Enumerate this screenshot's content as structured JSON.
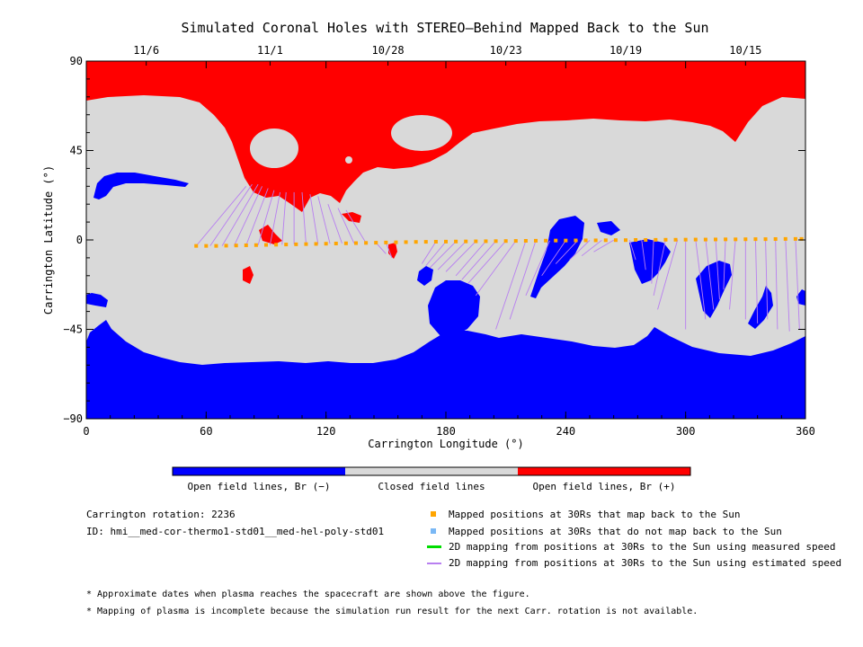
{
  "chart_data": {
    "type": "map",
    "title": "Simulated Coronal Holes with STEREO–Behind Mapped Back to the Sun",
    "xlabel": "Carrington Longitude (°)",
    "ylabel": "Carrington Latitude (°)",
    "xlim": [
      0,
      360
    ],
    "ylim": [
      -90,
      90
    ],
    "x_ticks": [
      "0",
      "60",
      "120",
      "180",
      "240",
      "300",
      "360"
    ],
    "y_ticks": [
      "90",
      "45",
      "0",
      "−45",
      "−90"
    ],
    "top_axis_dates": [
      {
        "label": "11/6",
        "lon": 30
      },
      {
        "label": "11/1",
        "lon": 92
      },
      {
        "label": "10/28",
        "lon": 151
      },
      {
        "label": "10/23",
        "lon": 210
      },
      {
        "label": "10/19",
        "lon": 270
      },
      {
        "label": "10/15",
        "lon": 330
      }
    ],
    "colorbar": [
      {
        "label": "Open field lines, Br (−)",
        "color": "#0000ff"
      },
      {
        "label": "Closed field lines",
        "color": "#d9d9d9"
      },
      {
        "label": "Open field lines, Br (+)",
        "color": "#ff0000"
      }
    ],
    "mapped_positions": {
      "color": "#ffa500",
      "points": [
        [
          55,
          -3
        ],
        [
          60,
          -3
        ],
        [
          65,
          -3
        ],
        [
          70,
          -2.9
        ],
        [
          75,
          -2.8
        ],
        [
          80,
          -2.7
        ],
        [
          85,
          -2.6
        ],
        [
          90,
          -2.5
        ],
        [
          95,
          -2.4
        ],
        [
          100,
          -2.3
        ],
        [
          105,
          -2.2
        ],
        [
          110,
          -2.1
        ],
        [
          115,
          -2
        ],
        [
          120,
          -1.9
        ],
        [
          125,
          -1.8
        ],
        [
          130,
          -1.7
        ],
        [
          135,
          -1.6
        ],
        [
          140,
          -1.5
        ],
        [
          145,
          -1.4
        ],
        [
          150,
          -1.3
        ],
        [
          155,
          -1.2
        ],
        [
          160,
          -1.1
        ],
        [
          165,
          -1
        ],
        [
          170,
          -0.95
        ],
        [
          175,
          -0.9
        ],
        [
          180,
          -0.85
        ],
        [
          185,
          -0.8
        ],
        [
          190,
          -0.75
        ],
        [
          195,
          -0.7
        ],
        [
          200,
          -0.65
        ],
        [
          205,
          -0.6
        ],
        [
          210,
          -0.55
        ],
        [
          215,
          -0.5
        ],
        [
          220,
          -0.45
        ],
        [
          225,
          -0.4
        ],
        [
          230,
          -0.35
        ],
        [
          235,
          -0.3
        ],
        [
          240,
          -0.3
        ],
        [
          245,
          -0.25
        ],
        [
          250,
          -0.2
        ],
        [
          255,
          -0.2
        ],
        [
          260,
          -0.15
        ],
        [
          265,
          -0.1
        ],
        [
          270,
          -0.1
        ],
        [
          275,
          0
        ],
        [
          280,
          0
        ],
        [
          285,
          0.05
        ],
        [
          290,
          0.1
        ],
        [
          295,
          0.1
        ],
        [
          300,
          0.15
        ],
        [
          305,
          0.2
        ],
        [
          310,
          0.2
        ],
        [
          315,
          0.25
        ],
        [
          320,
          0.3
        ],
        [
          325,
          0.3
        ],
        [
          330,
          0.35
        ],
        [
          335,
          0.4
        ],
        [
          340,
          0.4
        ],
        [
          345,
          0.45
        ],
        [
          350,
          0.5
        ],
        [
          355,
          0.5
        ],
        [
          358,
          0.5
        ]
      ]
    },
    "field_line_mappings": {
      "color": "#b87ff0",
      "lines": [
        [
          [
            55,
            -3
          ],
          [
            80,
            27
          ]
        ],
        [
          [
            62,
            -3
          ],
          [
            83,
            28
          ]
        ],
        [
          [
            68,
            -3
          ],
          [
            86,
            28
          ]
        ],
        [
          [
            74,
            -2.9
          ],
          [
            88,
            27
          ]
        ],
        [
          [
            80,
            -2.7
          ],
          [
            91,
            26
          ]
        ],
        [
          [
            86,
            -2.6
          ],
          [
            94,
            25
          ]
        ],
        [
          [
            92,
            -2.5
          ],
          [
            97,
            24
          ]
        ],
        [
          [
            98,
            -2.4
          ],
          [
            100,
            24
          ]
        ],
        [
          [
            104,
            -2.2
          ],
          [
            104,
            24
          ]
        ],
        [
          [
            110,
            -2.1
          ],
          [
            108,
            24
          ]
        ],
        [
          [
            116,
            -2
          ],
          [
            112,
            23
          ]
        ],
        [
          [
            122,
            -1.9
          ],
          [
            116,
            22
          ]
        ],
        [
          [
            128,
            -1.7
          ],
          [
            121,
            18
          ]
        ],
        [
          [
            134,
            -1.6
          ],
          [
            126,
            16
          ]
        ],
        [
          [
            140,
            -1.5
          ],
          [
            130,
            15
          ]
        ],
        [
          [
            145,
            -1.4
          ],
          [
            150,
            -7
          ]
        ],
        [
          [
            150,
            -1.3
          ],
          [
            153,
            -9
          ]
        ],
        [
          [
            175,
            -0.9
          ],
          [
            168,
            -12
          ]
        ],
        [
          [
            180,
            -0.85
          ],
          [
            170,
            -13
          ]
        ],
        [
          [
            185,
            -0.8
          ],
          [
            172,
            -14
          ]
        ],
        [
          [
            190,
            -0.75
          ],
          [
            176,
            -15
          ]
        ],
        [
          [
            195,
            -0.7
          ],
          [
            180,
            -16
          ]
        ],
        [
          [
            200,
            -0.65
          ],
          [
            185,
            -18
          ]
        ],
        [
          [
            205,
            -0.6
          ],
          [
            188,
            -20
          ]
        ],
        [
          [
            210,
            -0.55
          ],
          [
            191,
            -22
          ]
        ],
        [
          [
            215,
            -0.5
          ],
          [
            195,
            -28
          ]
        ],
        [
          [
            220,
            -0.45
          ],
          [
            205,
            -45
          ]
        ],
        [
          [
            225,
            -0.4
          ],
          [
            212,
            -40
          ]
        ],
        [
          [
            232,
            -0.35
          ],
          [
            220,
            -28
          ]
        ],
        [
          [
            240,
            -0.3
          ],
          [
            228,
            -18
          ]
        ],
        [
          [
            246,
            -0.25
          ],
          [
            235,
            -12
          ]
        ],
        [
          [
            252,
            -0.2
          ],
          [
            242,
            -10
          ]
        ],
        [
          [
            258,
            -0.2
          ],
          [
            248,
            -8
          ]
        ],
        [
          [
            264,
            -0.1
          ],
          [
            254,
            -6
          ]
        ],
        [
          [
            272,
            -0.1
          ],
          [
            275,
            -10
          ]
        ],
        [
          [
            278,
            0
          ],
          [
            280,
            -15
          ]
        ],
        [
          [
            284,
            0.05
          ],
          [
            283,
            -22
          ]
        ],
        [
          [
            290,
            0.1
          ],
          [
            284,
            -28
          ]
        ],
        [
          [
            296,
            0.1
          ],
          [
            286,
            -35
          ]
        ],
        [
          [
            300,
            0.15
          ],
          [
            300,
            -45
          ]
        ],
        [
          [
            305,
            0.2
          ],
          [
            310,
            -40
          ]
        ],
        [
          [
            310,
            0.2
          ],
          [
            314,
            -35
          ]
        ],
        [
          [
            315,
            0.25
          ],
          [
            317,
            -30
          ]
        ],
        [
          [
            320,
            0.3
          ],
          [
            319,
            -25
          ]
        ],
        [
          [
            325,
            0.3
          ],
          [
            322,
            -35
          ]
        ],
        [
          [
            330,
            0.35
          ],
          [
            330,
            -40
          ]
        ],
        [
          [
            335,
            0.4
          ],
          [
            336,
            -42
          ]
        ],
        [
          [
            340,
            0.4
          ],
          [
            341,
            -40
          ]
        ],
        [
          [
            345,
            0.45
          ],
          [
            346,
            -45
          ]
        ],
        [
          [
            350,
            0.5
          ],
          [
            352,
            -46
          ]
        ],
        [
          [
            355,
            0.5
          ],
          [
            357,
            -45
          ]
        ]
      ]
    },
    "legend": [
      {
        "label": "Mapped positions at 30Rs that map back to the Sun",
        "color": "#ffa500",
        "marker": "square"
      },
      {
        "label": "Mapped positions at 30Rs that do not map back to the Sun",
        "color": "#7ab8f5",
        "marker": "square"
      },
      {
        "label": "2D mapping from positions at 30Rs to the Sun using measured speed",
        "color": "#00dd00",
        "marker": "line"
      },
      {
        "label": "2D mapping from positions at 30Rs to the Sun using estimated speed",
        "color": "#b87ff0",
        "marker": "line"
      }
    ]
  },
  "info": {
    "carrington_rotation": "Carrington rotation: 2236",
    "id": "ID: hmi__med-cor-thermo1-std01__med-hel-poly-std01"
  },
  "notes": [
    "* Approximate dates when plasma reaches the spacecraft are shown above the figure.",
    "* Mapping of plasma is incomplete because the simulation run result for the next Carr. rotation is not available."
  ]
}
